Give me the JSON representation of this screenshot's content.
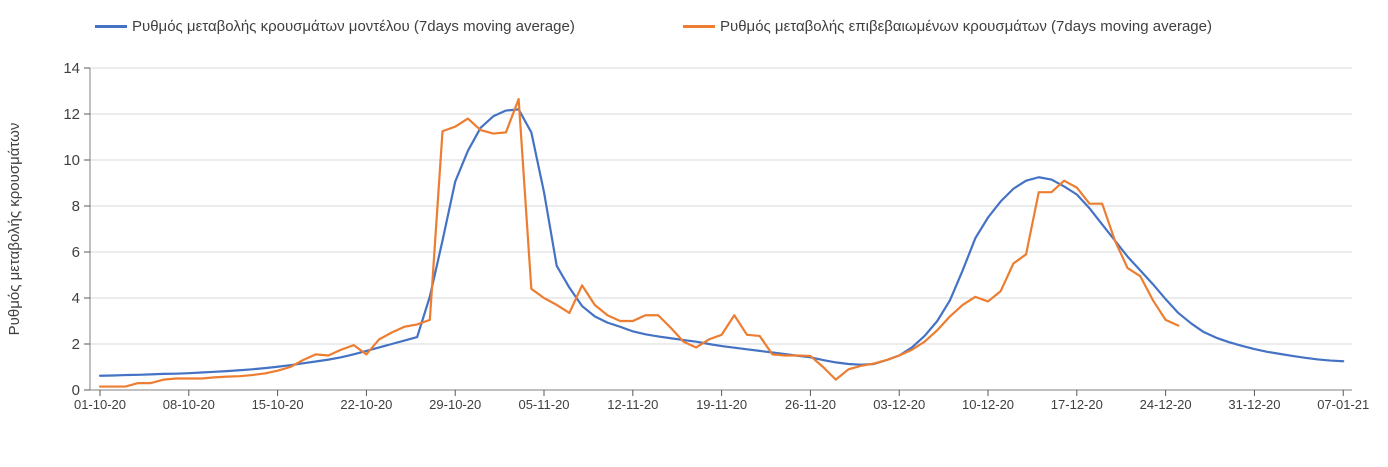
{
  "legend": {
    "items": [
      {
        "label": "Ρυθμός μεταβολής κρουσμάτων μοντέλου (7days moving average)",
        "color": "#4472C4"
      },
      {
        "label": "Ρυθμός μεταβολής επιβεβαιωμένων κρουσμάτων (7days moving average)",
        "color": "#ED7D31"
      }
    ]
  },
  "chart_data": {
    "type": "line",
    "title": "",
    "xlabel": "",
    "ylabel": "Ρυθμός μεταβολής κρουσμάτων",
    "ylim": [
      0,
      14
    ],
    "y_ticks": [
      0,
      2,
      4,
      6,
      8,
      10,
      12,
      14
    ],
    "grid": "horizontal",
    "legend_position": "top",
    "x_tick_labels": [
      "01-10-20",
      "08-10-20",
      "15-10-20",
      "22-10-20",
      "29-10-20",
      "05-11-20",
      "12-11-20",
      "19-11-20",
      "26-11-20",
      "03-12-20",
      "10-12-20",
      "17-12-20",
      "24-12-20",
      "31-12-20",
      "07-01-21"
    ],
    "x_tick_interval_days": 7,
    "x_start_date": "01-10-20",
    "series": [
      {
        "name": "Ρυθμός μεταβολής κρουσμάτων μοντέλου (7days moving average)",
        "color": "#4472C4",
        "start_day": 0,
        "values": [
          0.62,
          0.63,
          0.65,
          0.66,
          0.68,
          0.7,
          0.71,
          0.73,
          0.76,
          0.79,
          0.82,
          0.86,
          0.9,
          0.95,
          1.01,
          1.08,
          1.16,
          1.24,
          1.32,
          1.42,
          1.55,
          1.7,
          1.85,
          2.0,
          2.15,
          2.3,
          4.06,
          6.5,
          9.06,
          10.4,
          11.4,
          11.9,
          12.15,
          12.2,
          11.2,
          8.6,
          5.4,
          4.45,
          3.65,
          3.2,
          2.93,
          2.75,
          2.55,
          2.42,
          2.33,
          2.25,
          2.17,
          2.1,
          2.0,
          1.91,
          1.84,
          1.77,
          1.7,
          1.63,
          1.56,
          1.49,
          1.42,
          1.3,
          1.2,
          1.13,
          1.1,
          1.13,
          1.3,
          1.5,
          1.85,
          2.35,
          3.0,
          3.9,
          5.2,
          6.6,
          7.5,
          8.2,
          8.75,
          9.1,
          9.25,
          9.15,
          8.85,
          8.5,
          7.9,
          7.2,
          6.5,
          5.8,
          5.2,
          4.6,
          3.95,
          3.35,
          2.9,
          2.52,
          2.27,
          2.08,
          1.92,
          1.78,
          1.66,
          1.57,
          1.48,
          1.4,
          1.33,
          1.28,
          1.25
        ]
      },
      {
        "name": "Ρυθμός μεταβολής επιβεβαιωμένων κρουσμάτων (7days moving average)",
        "color": "#ED7D31",
        "start_day": 0,
        "values": [
          0.15,
          0.15,
          0.15,
          0.3,
          0.3,
          0.45,
          0.5,
          0.5,
          0.5,
          0.55,
          0.58,
          0.6,
          0.65,
          0.72,
          0.84,
          1.0,
          1.3,
          1.55,
          1.5,
          1.75,
          1.95,
          1.55,
          2.2,
          2.5,
          2.75,
          2.85,
          3.05,
          11.25,
          11.45,
          11.8,
          11.3,
          11.15,
          11.2,
          12.65,
          4.4,
          4.0,
          3.7,
          3.35,
          4.55,
          3.7,
          3.25,
          3.0,
          3.0,
          3.25,
          3.25,
          2.7,
          2.1,
          1.85,
          2.2,
          2.4,
          3.25,
          2.4,
          2.35,
          1.55,
          1.5,
          1.5,
          1.48,
          1.0,
          0.45,
          0.9,
          1.05,
          1.15,
          1.3,
          1.5,
          1.75,
          2.1,
          2.6,
          3.2,
          3.7,
          4.05,
          3.85,
          4.3,
          5.5,
          5.9,
          8.6,
          8.6,
          9.1,
          8.8,
          8.1,
          8.1,
          6.5,
          5.3,
          4.95,
          3.9,
          3.05,
          2.8
        ]
      }
    ]
  },
  "colors": {
    "axis_line": "#808080",
    "tick_mark": "#595959",
    "tick_label": "#404040",
    "gridline": "#D9D9D9",
    "background": "#FFFFFF"
  }
}
